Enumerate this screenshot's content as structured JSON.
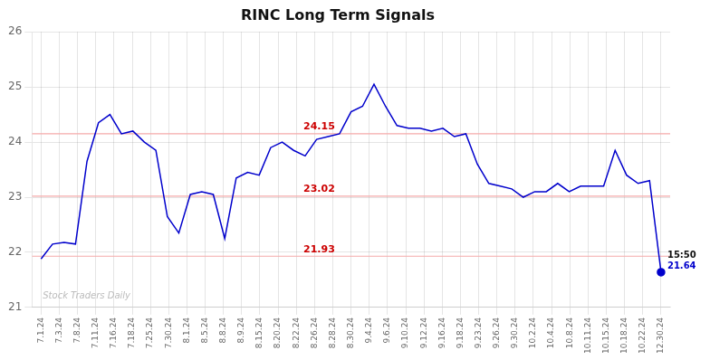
{
  "chart_data": {
    "type": "line",
    "title": "RINC Long Term Signals",
    "color": "#0000cc",
    "x": [
      0,
      0.62963,
      1.259259,
      1.888889,
      2.518519,
      3.148148,
      3.777778,
      4.407407,
      5.037037,
      5.666667,
      6.296296,
      6.925926,
      7.555556,
      8.185185,
      8.814815,
      9.444444,
      10.074074,
      10.703704,
      11.333333,
      11.962963,
      12.592593,
      13.222222,
      13.851852,
      14.481481,
      15.111111,
      15.740741,
      16.37037,
      17,
      17.62963,
      18.259259,
      18.888889,
      19.518519,
      20.148148,
      20.777778,
      21.407407,
      22.037037,
      22.666667,
      23.296296,
      23.925926,
      24.555556,
      25.185185,
      25.814815,
      26.444444,
      27.074074,
      27.703704,
      28.333333,
      28.962963,
      29.592593,
      30.222222,
      30.851852,
      31.481481,
      32.111111,
      32.740741,
      33.37037,
      34
    ],
    "values": [
      21.88,
      22.15,
      22.18,
      22.15,
      23.65,
      24.35,
      24.5,
      24.15,
      24.2,
      24.0,
      23.85,
      22.65,
      22.35,
      23.05,
      23.1,
      23.05,
      22.25,
      23.35,
      23.45,
      23.4,
      23.9,
      24.0,
      23.85,
      23.75,
      24.05,
      24.1,
      24.15,
      24.55,
      24.65,
      25.05,
      24.65,
      24.3,
      24.25,
      24.25,
      24.2,
      24.25,
      24.1,
      24.15,
      23.6,
      23.25,
      23.2,
      23.15,
      23.0,
      23.1,
      23.1,
      23.25,
      23.1,
      23.2,
      23.2,
      23.2,
      23.85,
      23.4,
      23.25,
      23.3,
      21.64
    ],
    "xlim": [
      -0.5,
      34.5
    ],
    "xticks": [
      {
        "value": 0,
        "label": "7.1.24"
      },
      {
        "value": 1,
        "label": "7.3.24"
      },
      {
        "value": 2,
        "label": "7.8.24"
      },
      {
        "value": 3,
        "label": "7.11.24"
      },
      {
        "value": 4,
        "label": "7.16.24"
      },
      {
        "value": 5,
        "label": "7.18.24"
      },
      {
        "value": 6,
        "label": "7.25.24"
      },
      {
        "value": 7,
        "label": "7.30.24"
      },
      {
        "value": 8,
        "label": "8.1.24"
      },
      {
        "value": 9,
        "label": "8.5.24"
      },
      {
        "value": 10,
        "label": "8.8.24"
      },
      {
        "value": 11,
        "label": "8.9.24"
      },
      {
        "value": 12,
        "label": "8.15.24"
      },
      {
        "value": 13,
        "label": "8.20.24"
      },
      {
        "value": 14,
        "label": "8.22.24"
      },
      {
        "value": 15,
        "label": "8.26.24"
      },
      {
        "value": 16,
        "label": "8.28.24"
      },
      {
        "value": 17,
        "label": "8.30.24"
      },
      {
        "value": 18,
        "label": "9.4.24"
      },
      {
        "value": 19,
        "label": "9.6.24"
      },
      {
        "value": 20,
        "label": "9.10.24"
      },
      {
        "value": 21,
        "label": "9.12.24"
      },
      {
        "value": 22,
        "label": "9.16.24"
      },
      {
        "value": 23,
        "label": "9.18.24"
      },
      {
        "value": 24,
        "label": "9.23.24"
      },
      {
        "value": 25,
        "label": "9.26.24"
      },
      {
        "value": 26,
        "label": "9.30.24"
      },
      {
        "value": 27,
        "label": "10.2.24"
      },
      {
        "value": 28,
        "label": "10.4.24"
      },
      {
        "value": 29,
        "label": "10.8.24"
      },
      {
        "value": 30,
        "label": "10.11.24"
      },
      {
        "value": 31,
        "label": "10.15.24"
      },
      {
        "value": 32,
        "label": "10.18.24"
      },
      {
        "value": 33,
        "label": "10.22.24"
      },
      {
        "value": 34,
        "label": "12.30.24"
      }
    ],
    "ylim": [
      21,
      26
    ],
    "yticks": [
      21,
      22,
      23,
      24,
      25,
      26
    ],
    "grid": true,
    "h_lines": [
      {
        "value": 24.15,
        "label": "24.15",
        "color": "#f5aaaa",
        "label_color": "#cc0000"
      },
      {
        "value": 23.02,
        "label": "23.02",
        "color": "#f5aaaa",
        "label_color": "#cc0000"
      },
      {
        "value": 21.93,
        "label": "21.93",
        "color": "#f5aaaa",
        "label_color": "#cc0000"
      }
    ],
    "last_point": {
      "time_label": "15:50",
      "value": 21.64,
      "color": "#0000cc"
    },
    "watermark": "Stock Traders Daily"
  }
}
